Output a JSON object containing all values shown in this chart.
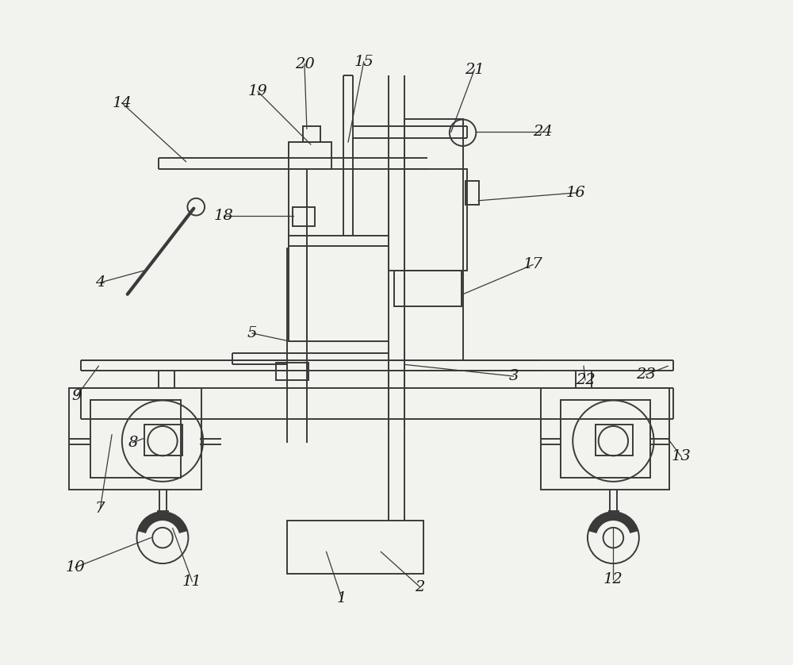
{
  "bg_color": "#f2f2ee",
  "line_color": "#3a3a3a",
  "lw": 1.4,
  "lw_thin": 0.9,
  "lw_thick": 2.0
}
